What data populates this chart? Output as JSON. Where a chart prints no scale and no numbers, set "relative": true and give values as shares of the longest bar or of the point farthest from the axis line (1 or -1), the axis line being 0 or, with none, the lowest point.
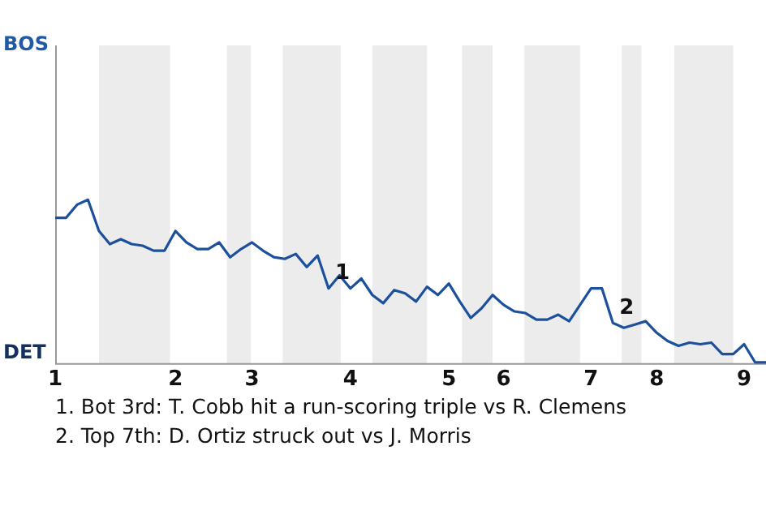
{
  "chart_data": {
    "type": "line",
    "relative": true,
    "categories": [
      "1",
      null,
      null,
      null,
      null,
      null,
      null,
      null,
      null,
      null,
      null,
      "2",
      null,
      null,
      null,
      null,
      null,
      null,
      "3",
      null,
      null,
      null,
      null,
      null,
      null,
      null,
      null,
      "4",
      null,
      null,
      null,
      null,
      null,
      null,
      null,
      null,
      "5",
      null,
      null,
      null,
      null,
      "6",
      null,
      null,
      null,
      null,
      null,
      null,
      null,
      "7",
      null,
      null,
      null,
      null,
      null,
      "8",
      null,
      null,
      null,
      null,
      null,
      null,
      null,
      "9",
      null,
      null
    ],
    "series": [
      {
        "color": "#1c4f9c",
        "values": [
          0.89,
          0.89,
          0.97,
          1,
          0.81,
          0.73,
          0.76,
          0.73,
          0.72,
          0.69,
          0.69,
          0.81,
          0.74,
          0.7,
          0.7,
          0.74,
          0.65,
          0.7,
          0.74,
          0.69,
          0.65,
          0.64,
          0.67,
          0.59,
          0.66,
          0.46,
          0.54,
          0.46,
          0.52,
          0.42,
          0.37,
          0.45,
          0.43,
          0.38,
          0.47,
          0.42,
          0.49,
          0.38,
          0.28,
          0.34,
          0.42,
          0.36,
          0.32,
          0.31,
          0.27,
          0.27,
          0.3,
          0.26,
          0.36,
          0.46,
          0.46,
          0.25,
          0.22,
          0.24,
          0.26,
          0.19,
          0.14,
          0.11,
          0.13,
          0.12,
          0.13,
          0.06,
          0.06,
          0.12,
          0.01,
          0.01
        ]
      }
    ],
    "legend": false,
    "marker": "none",
    "annotations": [
      "BOS",
      "DET",
      {
        "text": "1",
        "y": 0.46
      },
      {
        "text": "2",
        "y": 0.25
      },
      "1. Bot 3rd: T. Cobb hit a run-scoring triple vs R. Clemens",
      "2. Top 7th: D. Ortiz struck out vs J. Morris"
    ]
  }
}
